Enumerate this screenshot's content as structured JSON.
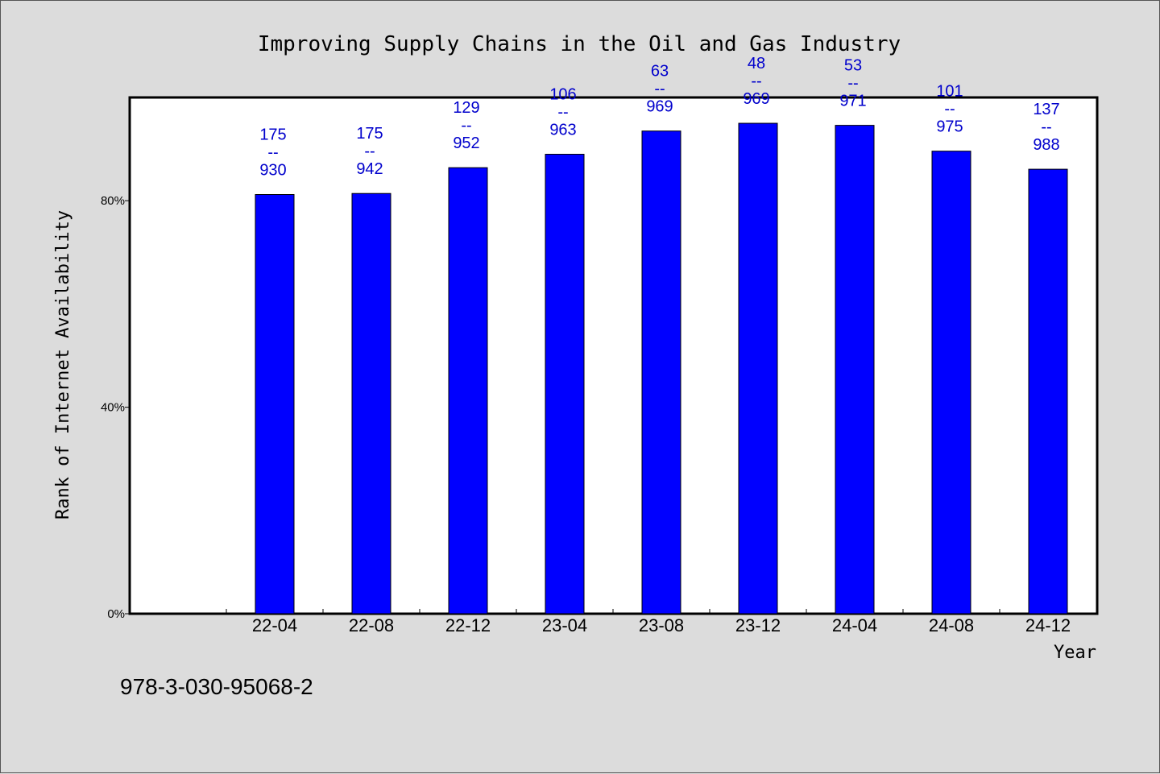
{
  "chart_data": {
    "type": "bar",
    "title": "Improving Supply Chains in the Oil and Gas Industry",
    "xlabel": "Year",
    "ylabel": "Rank of Internet Availability",
    "categories": [
      "22-04",
      "22-08",
      "22-12",
      "23-04",
      "23-08",
      "23-12",
      "24-04",
      "24-08",
      "24-12"
    ],
    "values": [
      81.2,
      81.4,
      86.4,
      89.0,
      93.5,
      95.0,
      94.6,
      89.6,
      86.1
    ],
    "labels_top": [
      "175",
      "175",
      "129",
      "106",
      "63",
      "48",
      "53",
      "101",
      "137"
    ],
    "labels_sep": "--",
    "labels_bottom": [
      "930",
      "942",
      "952",
      "963",
      "969",
      "969",
      "971",
      "975",
      "988"
    ],
    "ylim": [
      0,
      100
    ],
    "yticks": [
      0,
      40,
      80
    ],
    "ytick_labels": [
      "0%",
      "40%",
      "80%"
    ],
    "bar_color": "#0000ff",
    "label_color": "#0000cc",
    "grid": false
  },
  "footer_note": "978-3-030-95068-2"
}
